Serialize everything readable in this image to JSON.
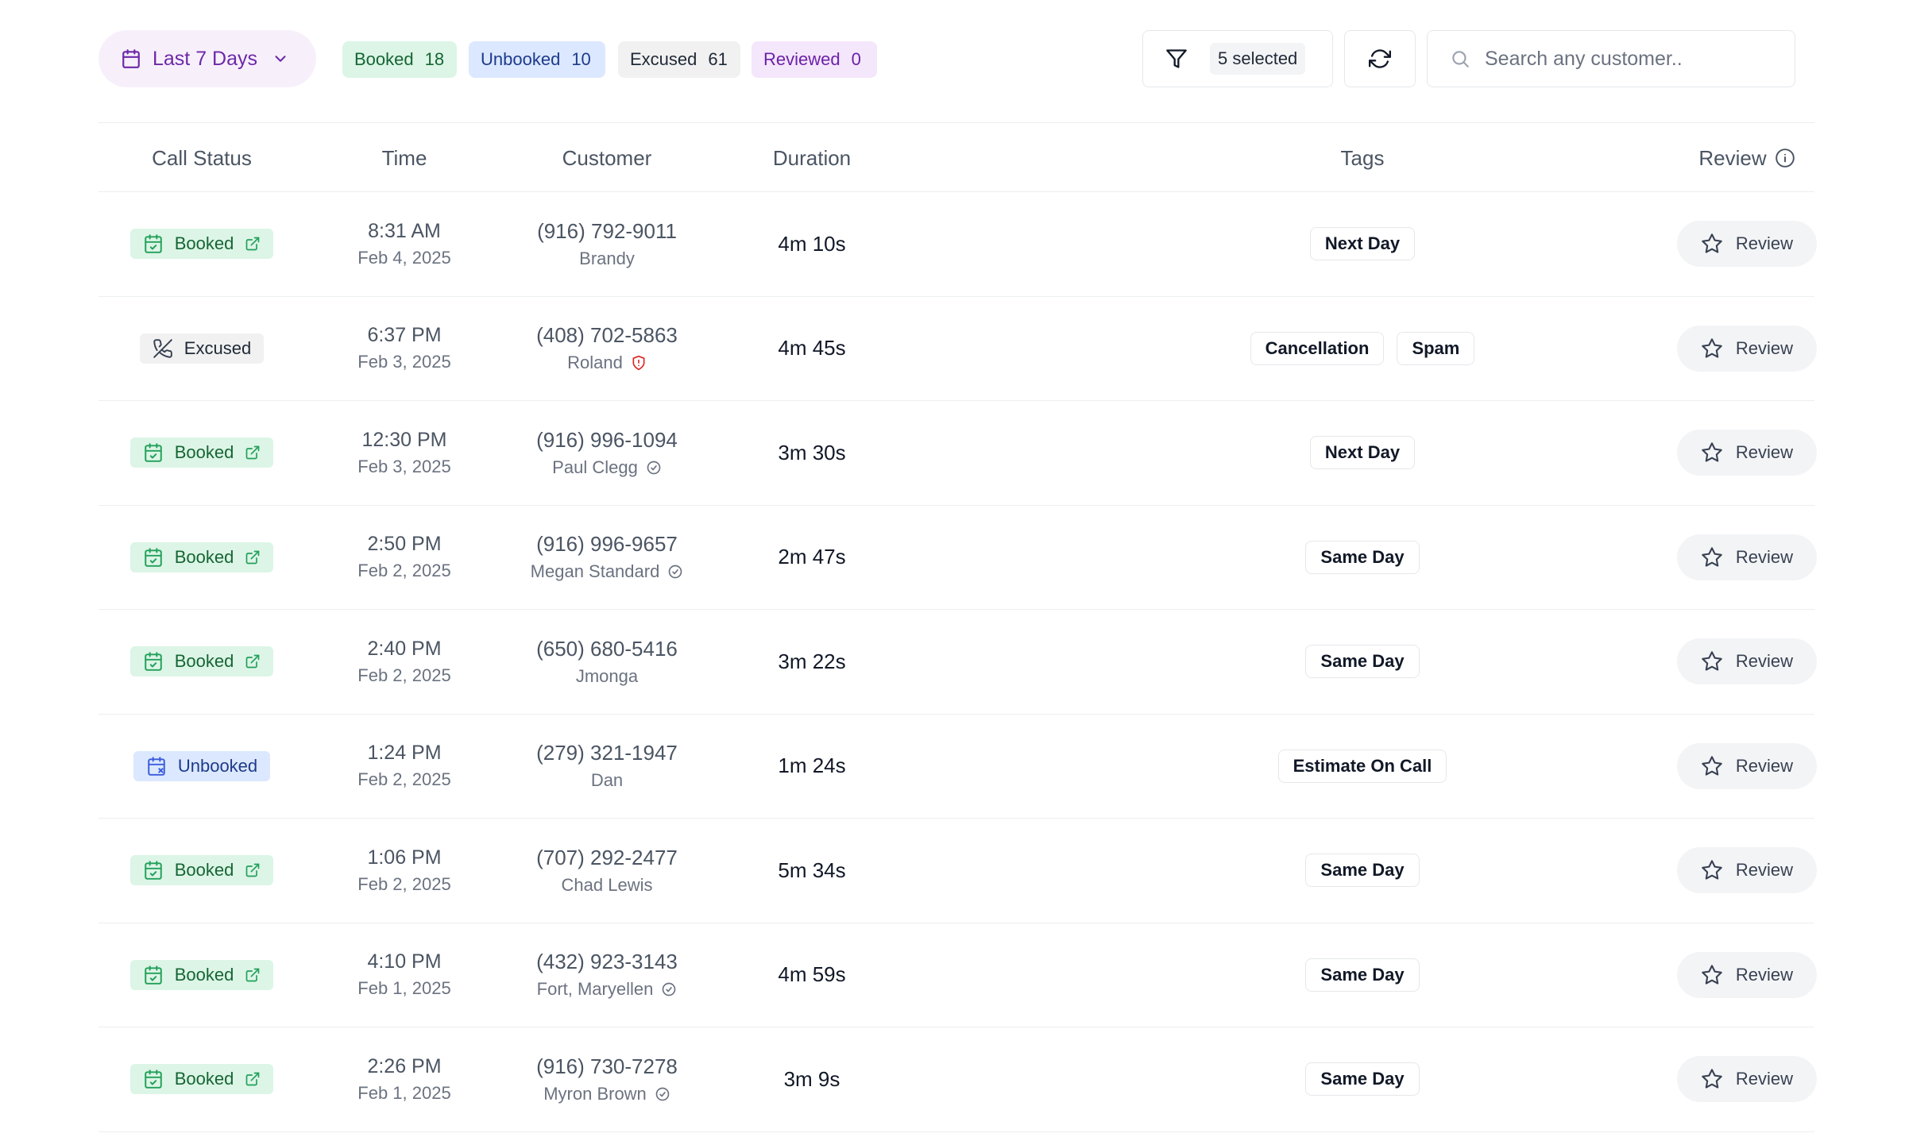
{
  "toolbar": {
    "date_range": "Last 7 Days",
    "counts": [
      {
        "label": "Booked",
        "count": "18"
      },
      {
        "label": "Unbooked",
        "count": "10"
      },
      {
        "label": "Excused",
        "count": "61"
      },
      {
        "label": "Reviewed",
        "count": "0"
      }
    ],
    "filter_selected": "5 selected",
    "search_placeholder": "Search any customer.."
  },
  "table": {
    "headers": {
      "status": "Call Status",
      "time": "Time",
      "customer": "Customer",
      "duration": "Duration",
      "tags": "Tags",
      "review": "Review"
    },
    "review_label": "Review",
    "rows": [
      {
        "status": "Booked",
        "status_kind": "booked",
        "time": "8:31 AM",
        "date": "Feb 4, 2025",
        "phone": "(916) 792-9011",
        "name": "Brandy",
        "name_icon": "none",
        "duration": "4m 10s",
        "tags": [
          "Next Day"
        ]
      },
      {
        "status": "Excused",
        "status_kind": "excused",
        "time": "6:37 PM",
        "date": "Feb 3, 2025",
        "phone": "(408) 702-5863",
        "name": "Roland",
        "name_icon": "warning-shield-icon",
        "duration": "4m 45s",
        "tags": [
          "Cancellation",
          "Spam"
        ]
      },
      {
        "status": "Booked",
        "status_kind": "booked",
        "time": "12:30 PM",
        "date": "Feb 3, 2025",
        "phone": "(916) 996-1094",
        "name": "Paul Clegg",
        "name_icon": "verified-check-icon",
        "duration": "3m 30s",
        "tags": [
          "Next Day"
        ]
      },
      {
        "status": "Booked",
        "status_kind": "booked",
        "time": "2:50 PM",
        "date": "Feb 2, 2025",
        "phone": "(916) 996-9657",
        "name": "Megan Standard",
        "name_icon": "verified-check-icon",
        "duration": "2m 47s",
        "tags": [
          "Same Day"
        ]
      },
      {
        "status": "Booked",
        "status_kind": "booked",
        "time": "2:40 PM",
        "date": "Feb 2, 2025",
        "phone": "(650) 680-5416",
        "name": "Jmonga",
        "name_icon": "none",
        "duration": "3m 22s",
        "tags": [
          "Same Day"
        ]
      },
      {
        "status": "Unbooked",
        "status_kind": "unbooked",
        "time": "1:24 PM",
        "date": "Feb 2, 2025",
        "phone": "(279) 321-1947",
        "name": "Dan",
        "name_icon": "none",
        "duration": "1m 24s",
        "tags": [
          "Estimate On Call"
        ]
      },
      {
        "status": "Booked",
        "status_kind": "booked",
        "time": "1:06 PM",
        "date": "Feb 2, 2025",
        "phone": "(707) 292-2477",
        "name": "Chad Lewis",
        "name_icon": "none",
        "duration": "5m 34s",
        "tags": [
          "Same Day"
        ]
      },
      {
        "status": "Booked",
        "status_kind": "booked",
        "time": "4:10 PM",
        "date": "Feb 1, 2025",
        "phone": "(432) 923-3143",
        "name": "Fort, Maryellen",
        "name_icon": "verified-check-icon",
        "duration": "4m 59s",
        "tags": [
          "Same Day"
        ]
      },
      {
        "status": "Booked",
        "status_kind": "booked",
        "time": "2:26 PM",
        "date": "Feb 1, 2025",
        "phone": "(916) 730-7278",
        "name": "Myron Brown",
        "name_icon": "verified-check-icon",
        "duration": "3m 9s",
        "tags": [
          "Same Day"
        ]
      }
    ]
  },
  "colors": {
    "booked_bg": "#dcf5e6",
    "booked_fg": "#166534",
    "unbooked_bg": "#dbe8ff",
    "unbooked_fg": "#1e3a8a",
    "excused_bg": "#f1f1f1",
    "reviewed_bg": "#f4e6fb",
    "accent_purple": "#6d28a8",
    "warning_red": "#dc2626"
  }
}
